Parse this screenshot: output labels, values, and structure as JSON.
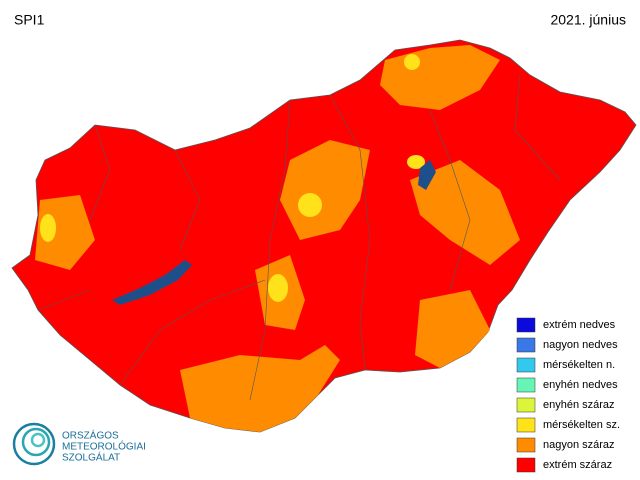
{
  "map": {
    "title": "SPI1",
    "date": "2021. június",
    "legend": [
      {
        "label": "extrém nedves",
        "color": "#0a0adc"
      },
      {
        "label": "nagyon nedves",
        "color": "#3a78e8"
      },
      {
        "label": "mérsékelten n.",
        "color": "#33c8ee"
      },
      {
        "label": "enyhén nedves",
        "color": "#66f5b4"
      },
      {
        "label": "enyhén száraz",
        "color": "#dcf53a"
      },
      {
        "label": "mérsékelten sz.",
        "color": "#ffe21a"
      },
      {
        "label": "nagyon száraz",
        "color": "#ff8c00"
      },
      {
        "label": "extrém száraz",
        "color": "#ff0000"
      }
    ],
    "logo": [
      "ORSZÁGOS",
      "METEOROLÓGIAI",
      "SZOLGÁLAT"
    ]
  }
}
